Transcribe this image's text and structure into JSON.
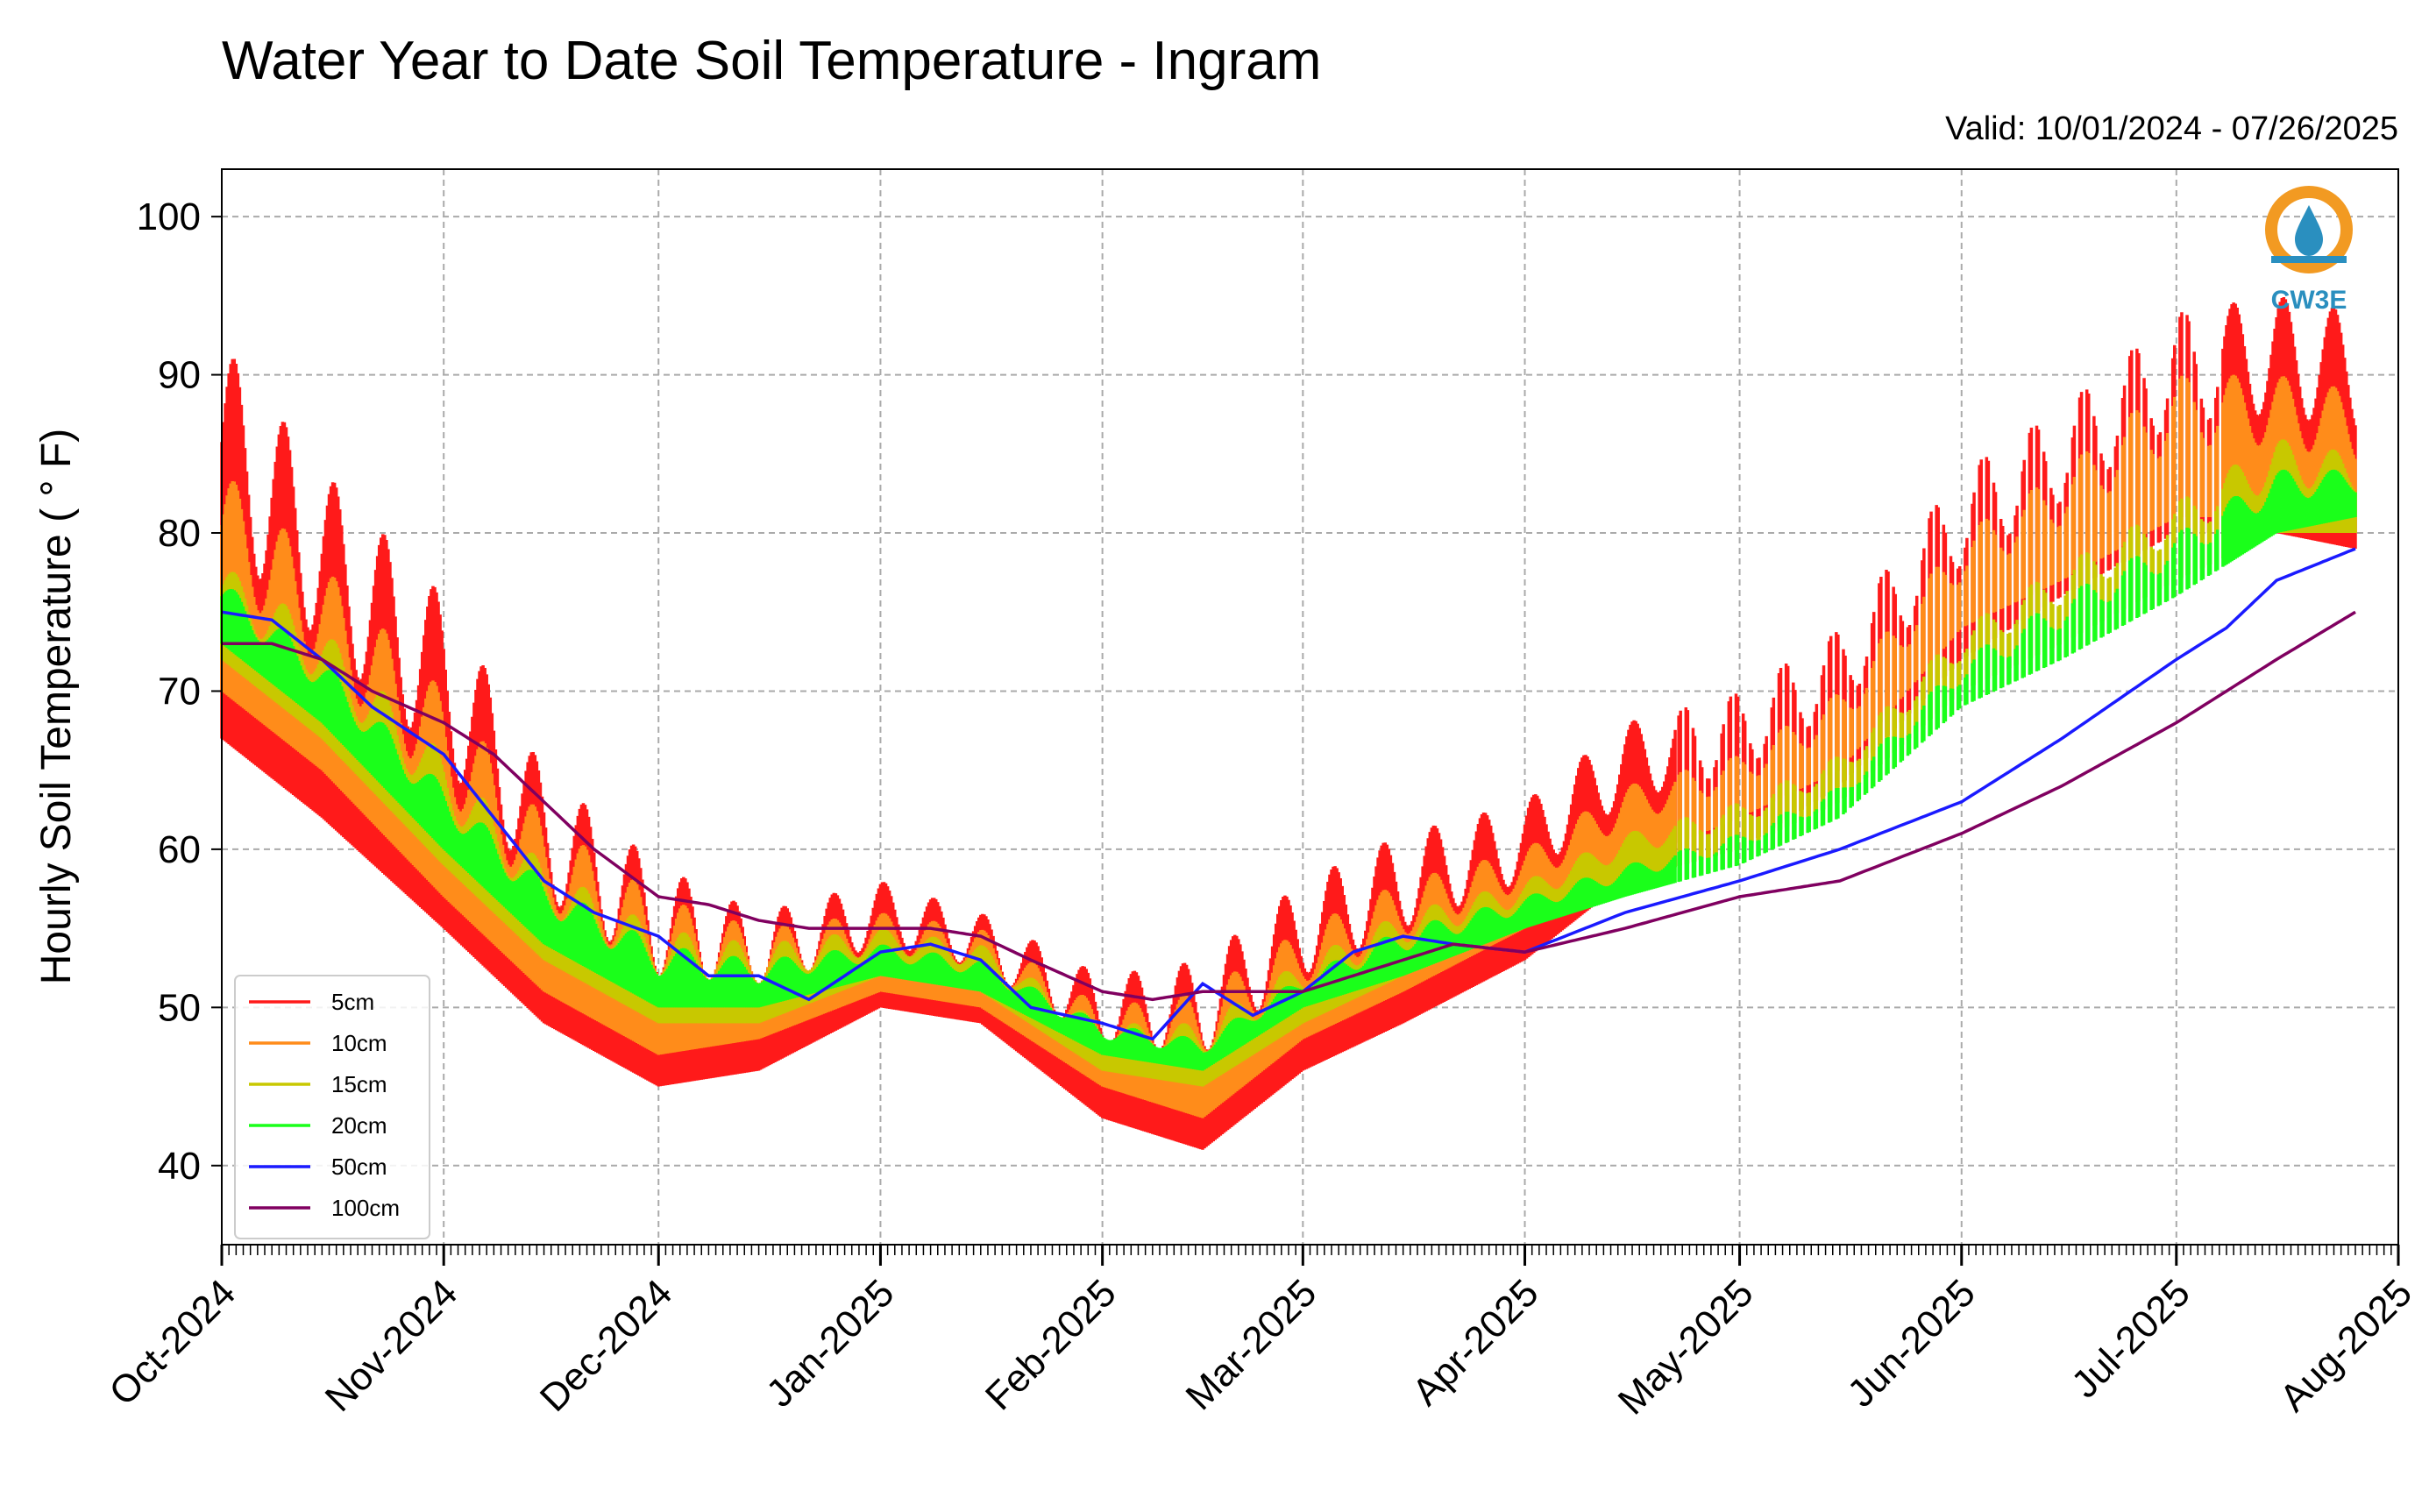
{
  "chart_data": {
    "type": "line",
    "title": "Water Year to Date Soil Temperature - Ingram",
    "subtitle": "Valid: 10/01/2024 - 07/26/2025",
    "xlabel": "",
    "ylabel": "Hourly Soil Temperature ( ° F)",
    "ylim": [
      35,
      103
    ],
    "yticks": [
      40,
      50,
      60,
      70,
      80,
      90,
      100
    ],
    "xlim": [
      "2024-10-01",
      "2025-08-01"
    ],
    "xticks": [
      "2024-10-01",
      "2024-11-01",
      "2024-12-01",
      "2025-01-01",
      "2025-02-01",
      "2025-03-01",
      "2025-04-01",
      "2025-05-01",
      "2025-06-01",
      "2025-07-01",
      "2025-08-01"
    ],
    "xtick_labels": [
      "Oct-2024",
      "Nov-2024",
      "Dec-2024",
      "Jan-2025",
      "Feb-2025",
      "Mar-2025",
      "Apr-2025",
      "May-2025",
      "Jun-2025",
      "Jul-2025",
      "Aug-2025"
    ],
    "grid": true,
    "legend_position": "lower-left",
    "series": [
      {
        "name": "5cm",
        "color": "#ff1a1a",
        "daily_range": true,
        "x": [
          "2024-10-01",
          "2024-10-15",
          "2024-11-01",
          "2024-11-15",
          "2024-12-01",
          "2024-12-15",
          "2025-01-01",
          "2025-01-15",
          "2025-02-01",
          "2025-02-15",
          "2025-03-01",
          "2025-03-15",
          "2025-04-01",
          "2025-04-15",
          "2025-05-01",
          "2025-05-15",
          "2025-06-01",
          "2025-06-15",
          "2025-07-01",
          "2025-07-15",
          "2025-07-26"
        ],
        "min": [
          67,
          62,
          55,
          49,
          45,
          46,
          50,
          49,
          43,
          41,
          46,
          49,
          53,
          58,
          60,
          64,
          72,
          76,
          80,
          80,
          79
        ],
        "max": [
          92,
          84,
          76,
          65,
          59,
          56,
          58,
          56,
          52,
          53,
          58,
          61,
          63,
          68,
          70,
          74,
          84,
          88,
          94,
          95,
          94
        ]
      },
      {
        "name": "10cm",
        "color": "#ff8c1a",
        "daily_range": true,
        "x": [
          "2024-10-01",
          "2024-10-15",
          "2024-11-01",
          "2024-11-15",
          "2024-12-01",
          "2024-12-15",
          "2025-01-01",
          "2025-01-15",
          "2025-02-01",
          "2025-02-15",
          "2025-03-01",
          "2025-03-15",
          "2025-04-01",
          "2025-04-15",
          "2025-05-01",
          "2025-05-15",
          "2025-06-01",
          "2025-06-15",
          "2025-07-01",
          "2025-07-15",
          "2025-07-26"
        ],
        "min": [
          70,
          65,
          57,
          51,
          47,
          48,
          51,
          50,
          45,
          43,
          48,
          51,
          55,
          59,
          62,
          65,
          74,
          77,
          81,
          81,
          80
        ],
        "max": [
          84,
          78,
          70,
          62,
          57,
          55,
          56,
          55,
          50,
          51,
          55,
          58,
          60,
          64,
          66,
          70,
          80,
          84,
          90,
          90,
          89
        ]
      },
      {
        "name": "15cm",
        "color": "#c8c800",
        "daily_range": true,
        "x": [
          "2024-10-01",
          "2024-10-15",
          "2024-11-01",
          "2024-11-15",
          "2024-12-01",
          "2024-12-15",
          "2025-01-01",
          "2025-01-15",
          "2025-02-01",
          "2025-02-15",
          "2025-03-01",
          "2025-03-15",
          "2025-04-01",
          "2025-04-15",
          "2025-05-01",
          "2025-05-15",
          "2025-06-01",
          "2025-06-15",
          "2025-07-01",
          "2025-07-15",
          "2025-07-26"
        ],
        "min": [
          72,
          67,
          59,
          53,
          49,
          49,
          52,
          51,
          46,
          45,
          49,
          52,
          55,
          58,
          60,
          63,
          70,
          73,
          77,
          80,
          80
        ],
        "max": [
          78,
          74,
          66,
          59,
          55,
          54,
          55,
          54,
          49,
          49,
          53,
          56,
          58,
          61,
          63,
          66,
          74,
          78,
          82,
          86,
          85
        ]
      },
      {
        "name": "20cm",
        "color": "#1aff1a",
        "daily_range": true,
        "x": [
          "2024-10-01",
          "2024-10-15",
          "2024-11-01",
          "2024-11-15",
          "2024-12-01",
          "2024-12-15",
          "2025-01-01",
          "2025-01-15",
          "2025-02-01",
          "2025-02-15",
          "2025-03-01",
          "2025-03-15",
          "2025-04-01",
          "2025-04-15",
          "2025-05-01",
          "2025-05-15",
          "2025-06-01",
          "2025-06-15",
          "2025-07-01",
          "2025-07-15",
          "2025-07-26"
        ],
        "min": [
          73,
          68,
          60,
          54,
          50,
          50,
          52,
          51,
          47,
          46,
          50,
          52,
          55,
          57,
          59,
          62,
          69,
          72,
          76,
          80,
          81
        ],
        "max": [
          77,
          72,
          64,
          58,
          54,
          53,
          54,
          53,
          49,
          48,
          52,
          55,
          57,
          59,
          61,
          64,
          72,
          76,
          80,
          84,
          84
        ]
      },
      {
        "name": "50cm",
        "color": "#1a1aff",
        "daily_range": false,
        "x": [
          "2024-10-01",
          "2024-10-08",
          "2024-10-15",
          "2024-10-22",
          "2024-11-01",
          "2024-11-08",
          "2024-11-15",
          "2024-11-22",
          "2024-12-01",
          "2024-12-08",
          "2024-12-15",
          "2024-12-22",
          "2025-01-01",
          "2025-01-08",
          "2025-01-15",
          "2025-01-22",
          "2025-02-01",
          "2025-02-08",
          "2025-02-15",
          "2025-02-22",
          "2025-03-01",
          "2025-03-08",
          "2025-03-15",
          "2025-03-22",
          "2025-04-01",
          "2025-04-15",
          "2025-05-01",
          "2025-05-15",
          "2025-06-01",
          "2025-06-15",
          "2025-07-01",
          "2025-07-08",
          "2025-07-15",
          "2025-07-26"
        ],
        "y": [
          75,
          74.5,
          72,
          69,
          66,
          62,
          58,
          56,
          54.5,
          52,
          52,
          50.5,
          53.5,
          54,
          53,
          50,
          49,
          48,
          51.5,
          49.5,
          51,
          53.5,
          54.5,
          54,
          53.5,
          56,
          58,
          60,
          63,
          67,
          72,
          74,
          77,
          79
        ]
      },
      {
        "name": "100cm",
        "color": "#800060",
        "daily_range": false,
        "x": [
          "2024-10-01",
          "2024-10-08",
          "2024-10-15",
          "2024-10-22",
          "2024-11-01",
          "2024-11-08",
          "2024-11-15",
          "2024-11-22",
          "2024-12-01",
          "2024-12-08",
          "2024-12-15",
          "2024-12-22",
          "2025-01-01",
          "2025-01-08",
          "2025-01-15",
          "2025-01-22",
          "2025-02-01",
          "2025-02-08",
          "2025-02-15",
          "2025-02-22",
          "2025-03-01",
          "2025-03-08",
          "2025-03-15",
          "2025-03-22",
          "2025-04-01",
          "2025-04-15",
          "2025-05-01",
          "2025-05-15",
          "2025-06-01",
          "2025-06-15",
          "2025-07-01",
          "2025-07-08",
          "2025-07-15",
          "2025-07-26"
        ],
        "y": [
          73,
          73,
          72,
          70,
          68,
          66,
          63,
          60,
          57,
          56.5,
          55.5,
          55,
          55,
          55,
          54.5,
          53,
          51,
          50.5,
          51,
          51,
          51,
          52,
          53,
          54,
          53.5,
          55,
          57,
          58,
          61,
          64,
          68,
          70,
          72,
          75
        ]
      }
    ]
  },
  "logo": {
    "text": "CW3E",
    "ring_color": "#f29a22",
    "blue": "#2a8fbf"
  }
}
